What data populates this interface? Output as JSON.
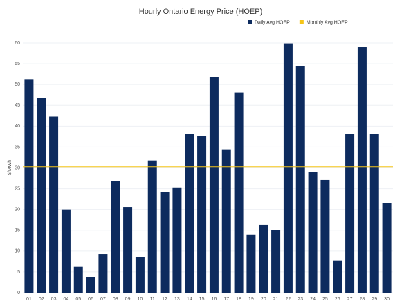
{
  "chart_data": {
    "type": "bar",
    "title": "Hourly Ontario Energy Price (HOEP)",
    "y_label": "$/MWh",
    "categories": [
      "01",
      "02",
      "03",
      "04",
      "05",
      "06",
      "07",
      "08",
      "09",
      "10",
      "11",
      "12",
      "13",
      "14",
      "15",
      "16",
      "17",
      "18",
      "19",
      "20",
      "21",
      "22",
      "23",
      "24",
      "25",
      "26",
      "27",
      "28",
      "29",
      "30"
    ],
    "series": [
      {
        "name": "Daily Avg HOEP",
        "color": "#0d2b5e",
        "values": [
          51.3,
          46.8,
          42.3,
          20.0,
          6.2,
          3.8,
          9.3,
          26.9,
          20.6,
          8.6,
          31.8,
          24.1,
          25.3,
          38.1,
          37.7,
          51.7,
          34.3,
          48.1,
          14.0,
          16.3,
          15.0,
          59.9,
          54.5,
          29.0,
          27.1,
          7.7,
          38.2,
          59.0,
          38.1,
          21.6
        ]
      }
    ],
    "reference_lines": [
      {
        "name": "Monthly Avg HOEP",
        "color": "#f5c518",
        "value": 30.2
      }
    ],
    "ylim": [
      0,
      60
    ],
    "yticks": [
      0,
      5,
      10,
      15,
      20,
      25,
      30,
      35,
      40,
      45,
      50,
      55,
      60
    ],
    "grid": true,
    "legend": "top-right"
  }
}
